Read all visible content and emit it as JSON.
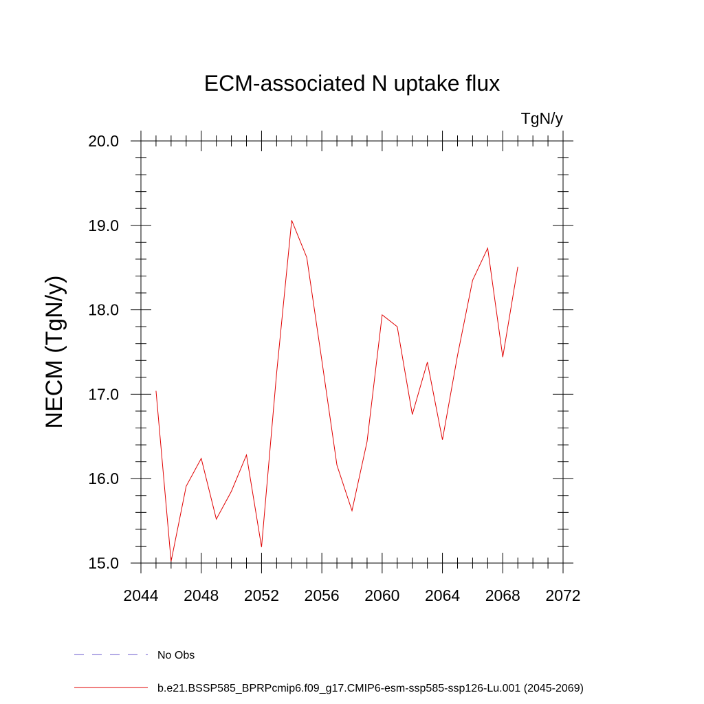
{
  "chart_data": {
    "type": "line",
    "title": "ECM-associated N uptake flux",
    "units_label": "TgN/y",
    "ylabel": "NECM  (TgN/y)",
    "xlabel": "",
    "xlim": [
      2044,
      2072
    ],
    "ylim": [
      15.0,
      20.0
    ],
    "x_ticks": [
      2044,
      2048,
      2052,
      2056,
      2060,
      2064,
      2068,
      2072
    ],
    "x_tick_labels": [
      "2044",
      "2048",
      "2052",
      "2056",
      "2060",
      "2064",
      "2068",
      "2072"
    ],
    "y_ticks": [
      15.0,
      16.0,
      17.0,
      18.0,
      19.0,
      20.0
    ],
    "y_tick_labels": [
      "15.0",
      "16.0",
      "17.0",
      "18.0",
      "19.0",
      "20.0"
    ],
    "x_minor_step": 1,
    "y_minor_step": 0.2,
    "grid": false,
    "legend_position": "bottom-left",
    "series": [
      {
        "name": "No Obs",
        "color": "#6a5acd",
        "dash": true,
        "x": [],
        "values": []
      },
      {
        "name": "b.e21.BSSP585_BPRPcmip6.f09_g17.CMIP6-esm-ssp585-ssp126-Lu.001 (2045-2069)",
        "color": "#e00000",
        "dash": false,
        "x": [
          2045,
          2046,
          2047,
          2048,
          2049,
          2050,
          2051,
          2052,
          2053,
          2054,
          2055,
          2056,
          2057,
          2058,
          2059,
          2060,
          2061,
          2062,
          2063,
          2064,
          2065,
          2066,
          2067,
          2068,
          2069
        ],
        "values": [
          17.04,
          15.02,
          15.91,
          16.24,
          15.52,
          15.85,
          16.28,
          15.19,
          17.25,
          19.06,
          18.62,
          17.4,
          16.16,
          15.62,
          16.44,
          17.94,
          17.8,
          16.76,
          17.38,
          16.46,
          17.46,
          18.35,
          18.73,
          17.44,
          18.51
        ]
      }
    ]
  }
}
